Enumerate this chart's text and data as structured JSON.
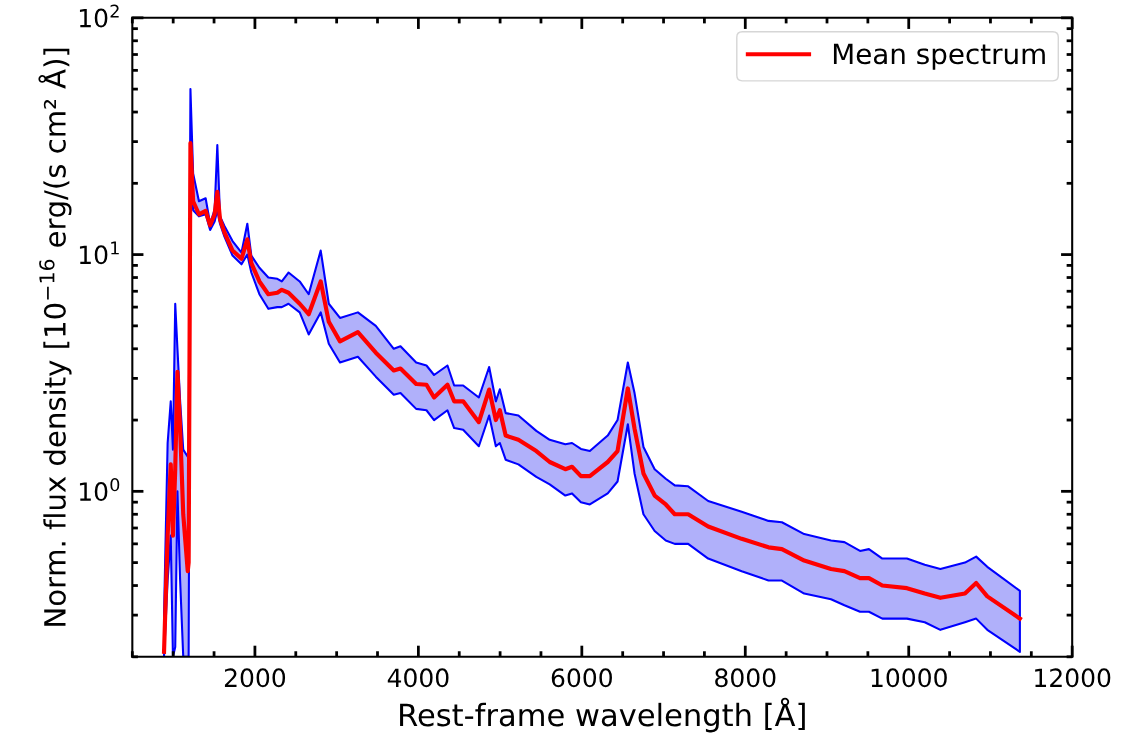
{
  "chart_data": {
    "type": "line",
    "xlabel": "Rest-frame wavelength [Å]",
    "ylabel": "Norm. flux density [10$^{−16}$ erg/(s cm² Å)]",
    "x": [
      888,
      932,
      970,
      997,
      1025,
      1052,
      1085,
      1123,
      1178,
      1189,
      1211,
      1244,
      1315,
      1397,
      1452,
      1507,
      1540,
      1573,
      1627,
      1726,
      1836,
      1907,
      1956,
      2055,
      2164,
      2274,
      2329,
      2411,
      2548,
      2658,
      2805,
      2904,
      3041,
      3260,
      3479,
      3699,
      3781,
      3973,
      4099,
      4192,
      4356,
      4438,
      4548,
      4740,
      4866,
      4948,
      4997,
      5068,
      5224,
      5443,
      5607,
      5798,
      5880,
      5989,
      6098,
      6317,
      6437,
      6563,
      6645,
      6754,
      6891,
      7027,
      7137,
      7301,
      7546,
      7956,
      8284,
      8448,
      8721,
      9049,
      9213,
      9404,
      9513,
      9677,
      9978,
      10196,
      10387,
      10688,
      10825,
      10961,
      11360
    ],
    "series": [
      {
        "name": "Mean spectrum",
        "color": "#ff0000",
        "values": [
          0.21,
          0.65,
          1.3,
          0.65,
          1.24,
          3.2,
          1.84,
          0.8,
          0.46,
          0.5,
          29.6,
          16.8,
          14.8,
          15.3,
          13.3,
          14.8,
          18.4,
          14.1,
          12.4,
          10.4,
          9.6,
          11.6,
          9.2,
          7.7,
          6.8,
          6.9,
          7.1,
          6.9,
          6.2,
          5.6,
          7.7,
          5.2,
          4.3,
          4.7,
          3.85,
          3.24,
          3.3,
          2.84,
          2.82,
          2.49,
          2.82,
          2.4,
          2.4,
          1.96,
          2.69,
          2.0,
          2.2,
          1.72,
          1.65,
          1.48,
          1.33,
          1.24,
          1.27,
          1.16,
          1.16,
          1.33,
          1.48,
          2.72,
          1.84,
          1.19,
          0.96,
          0.88,
          0.8,
          0.8,
          0.71,
          0.63,
          0.58,
          0.57,
          0.51,
          0.47,
          0.46,
          0.43,
          0.43,
          0.4,
          0.39,
          0.37,
          0.355,
          0.37,
          0.41,
          0.36,
          0.29
        ],
        "upper": [
          0.3,
          1.6,
          2.4,
          1.5,
          6.2,
          4,
          2.4,
          1.5,
          1.4,
          1.5,
          50,
          22,
          16.8,
          17.3,
          13.5,
          15.5,
          29,
          14.5,
          13.2,
          11.4,
          10.2,
          13.5,
          9.9,
          8.8,
          8.0,
          7.9,
          7.7,
          8.4,
          7.7,
          6.8,
          10.4,
          6.2,
          5.4,
          5.7,
          5.0,
          4.0,
          4.1,
          3.5,
          3.4,
          3.1,
          3.4,
          2.8,
          2.8,
          2.49,
          3.35,
          2.4,
          2.7,
          2.14,
          2.09,
          1.8,
          1.65,
          1.58,
          1.6,
          1.51,
          1.48,
          1.72,
          2.0,
          3.5,
          2.6,
          1.54,
          1.24,
          1.13,
          1.06,
          1.05,
          0.91,
          0.82,
          0.75,
          0.74,
          0.66,
          0.62,
          0.61,
          0.56,
          0.57,
          0.52,
          0.52,
          0.49,
          0.47,
          0.5,
          0.53,
          0.48,
          0.38
        ],
        "lower": [
          0.2,
          0.42,
          0.65,
          0.2,
          0.22,
          1.0,
          0.42,
          0.2,
          0.2,
          0.2,
          25,
          15.4,
          14.5,
          14.8,
          12.7,
          13.8,
          15.4,
          13.5,
          11.9,
          9.9,
          9.1,
          10,
          8.4,
          6.8,
          5.9,
          6.0,
          6.0,
          6.2,
          5.7,
          4.6,
          5.7,
          4.2,
          3.5,
          3.7,
          3.05,
          2.56,
          2.6,
          2.23,
          2.2,
          2.0,
          2.2,
          1.85,
          1.82,
          1.55,
          2.09,
          1.55,
          1.6,
          1.36,
          1.3,
          1.15,
          1.07,
          0.96,
          0.98,
          0.9,
          0.88,
          0.98,
          1.1,
          1.92,
          1.19,
          0.8,
          0.68,
          0.62,
          0.6,
          0.6,
          0.52,
          0.46,
          0.42,
          0.42,
          0.37,
          0.35,
          0.33,
          0.31,
          0.31,
          0.29,
          0.29,
          0.28,
          0.26,
          0.28,
          0.29,
          0.26,
          0.21
        ]
      }
    ],
    "log": "y",
    "xlim": [
      500,
      12000
    ],
    "ylim": [
      0.2,
      100
    ],
    "xticks": [
      {
        "value": 500,
        "label": null
      },
      {
        "value": 1000,
        "label": null
      },
      {
        "value": 1500,
        "label": null
      },
      2000,
      {
        "value": 2500,
        "label": null
      },
      {
        "value": 3000,
        "label": null
      },
      {
        "value": 3500,
        "label": null
      },
      4000,
      {
        "value": 4500,
        "label": null
      },
      {
        "value": 5000,
        "label": null
      },
      {
        "value": 5500,
        "label": null
      },
      6000,
      {
        "value": 6500,
        "label": null
      },
      {
        "value": 7000,
        "label": null
      },
      {
        "value": 7500,
        "label": null
      },
      8000,
      {
        "value": 8500,
        "label": null
      },
      {
        "value": 9000,
        "label": null
      },
      {
        "value": 9500,
        "label": null
      },
      10000,
      {
        "value": 10500,
        "label": null
      },
      {
        "value": 11000,
        "label": null
      },
      {
        "value": 11500,
        "label": null
      },
      12000
    ],
    "yticks": [
      {
        "value": 0.2,
        "label": null
      },
      {
        "value": 0.3,
        "label": null
      },
      {
        "value": 0.4,
        "label": null
      },
      {
        "value": 0.5,
        "label": null
      },
      {
        "value": 0.6,
        "label": null
      },
      {
        "value": 0.7,
        "label": null
      },
      {
        "value": 0.8,
        "label": null
      },
      {
        "value": 0.9,
        "label": null
      },
      {
        "value": 1,
        "label": "10$^{0}$"
      },
      {
        "value": 2,
        "label": null
      },
      {
        "value": 3,
        "label": null
      },
      {
        "value": 4,
        "label": null
      },
      {
        "value": 5,
        "label": null
      },
      {
        "value": 6,
        "label": null
      },
      {
        "value": 7,
        "label": null
      },
      {
        "value": 8,
        "label": null
      },
      {
        "value": 9,
        "label": null
      },
      {
        "value": 10,
        "label": "10$^{1}$"
      },
      {
        "value": 20,
        "label": null
      },
      {
        "value": 30,
        "label": null
      },
      {
        "value": 40,
        "label": null
      },
      {
        "value": 50,
        "label": null
      },
      {
        "value": 60,
        "label": null
      },
      {
        "value": 70,
        "label": null
      },
      {
        "value": 80,
        "label": null
      },
      {
        "value": 90,
        "label": null
      },
      {
        "value": 100,
        "label": "10$^{2}$"
      }
    ],
    "grid": false,
    "legend": "top right",
    "line_style": "solid",
    "marker": "none"
  }
}
